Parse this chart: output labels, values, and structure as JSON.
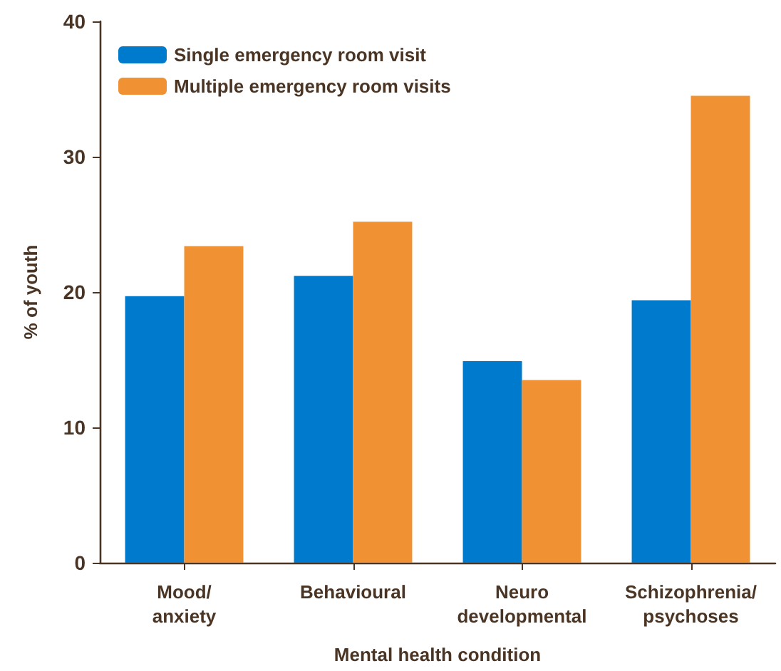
{
  "chart_data": {
    "type": "bar",
    "xlabel": "Mental health condition",
    "ylabel": "% of youth",
    "categories": [
      "Mood/\nanxiety",
      "Behavioural",
      "Neuro\ndevelopmental",
      "Schizophrenia/\npsychoses"
    ],
    "series": [
      {
        "name": "Single emergency room visit",
        "color": "#007acc",
        "values": [
          19.7,
          21.2,
          14.9,
          19.4
        ]
      },
      {
        "name": "Multiple emergency room visits",
        "color": "#f09233",
        "values": [
          23.4,
          25.2,
          13.5,
          34.5
        ]
      }
    ],
    "ylim": [
      0,
      40
    ],
    "yticks": [
      0,
      10,
      20,
      30,
      40
    ],
    "grid": false,
    "legend": "top left"
  }
}
